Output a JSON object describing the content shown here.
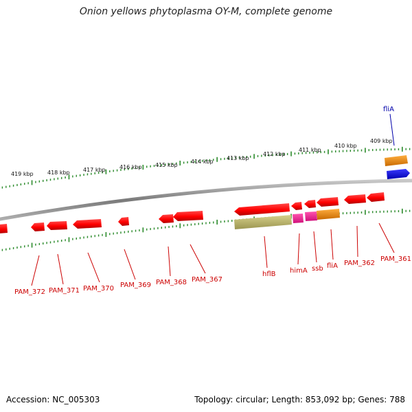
{
  "title": "Onion yellows phytoplasma OY-M, complete genome",
  "footer": {
    "accession": "Accession: NC_005303",
    "stats": "Topology: circular; Length: 853,092 bp; Genes: 788"
  },
  "colors": {
    "backbone": "#8a8a8a",
    "ticks": "#2a8a2a",
    "default_gene": "#ff0000",
    "label_red": "#cc0000",
    "label_blue": "#0000aa",
    "hflB_band": "#bdb76b",
    "himA": "#ff1493",
    "ssb": "#ff1493",
    "fliA_orange": "#ff8c00",
    "fliA_blue": "#0000ff"
  },
  "kbp_labels": [
    "419 kbp",
    "418 kbp",
    "417 kbp",
    "416 kbp",
    "415 kbp",
    "414 kbp",
    "413 kbp",
    "412 kbp",
    "411 kbp",
    "410 kbp",
    "409 kbp"
  ],
  "gene_labels": [
    {
      "id": "PAM_372",
      "text": "PAM_372",
      "color": "red"
    },
    {
      "id": "PAM_371",
      "text": "PAM_371",
      "color": "red"
    },
    {
      "id": "PAM_370",
      "text": "PAM_370",
      "color": "red"
    },
    {
      "id": "PAM_369",
      "text": "PAM_369",
      "color": "red"
    },
    {
      "id": "PAM_368",
      "text": "PAM_368",
      "color": "red"
    },
    {
      "id": "PAM_367",
      "text": "PAM_367",
      "color": "red"
    },
    {
      "id": "hflB",
      "text": "hflB",
      "color": "red"
    },
    {
      "id": "himA",
      "text": "himA",
      "color": "red"
    },
    {
      "id": "ssb",
      "text": "ssb",
      "color": "red"
    },
    {
      "id": "fliA_inner",
      "text": "fliA",
      "color": "red"
    },
    {
      "id": "PAM_362",
      "text": "PAM_362",
      "color": "red"
    },
    {
      "id": "PAM_361",
      "text": "PAM_361",
      "color": "red"
    },
    {
      "id": "fliA_outer",
      "text": "fliA",
      "color": "blue"
    }
  ]
}
